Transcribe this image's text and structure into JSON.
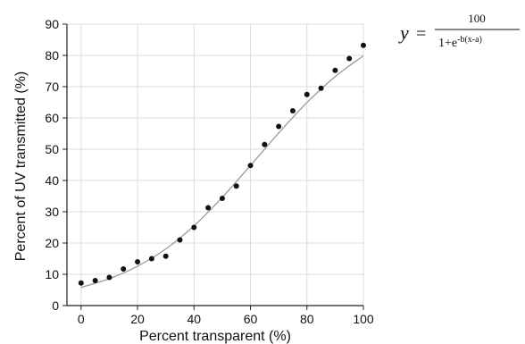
{
  "chart_data": {
    "type": "scatter",
    "title": "",
    "xlabel": "Percent transparent (%)",
    "ylabel": "Percent of UV transmitted (%)",
    "xlim": [
      -5,
      100
    ],
    "ylim": [
      0,
      90
    ],
    "xticks": [
      0,
      20,
      40,
      60,
      80,
      100
    ],
    "yticks": [
      0,
      10,
      20,
      30,
      40,
      50,
      60,
      70,
      80,
      90
    ],
    "grid": true,
    "legend": "none",
    "series": [
      {
        "kind": "points",
        "x": [
          0,
          5,
          10,
          15,
          20,
          25,
          30,
          35,
          40,
          45,
          50,
          55,
          60,
          65,
          70,
          75,
          80,
          85,
          90,
          95,
          100
        ],
        "y": [
          7.2,
          8.0,
          9.0,
          11.7,
          14.0,
          15.0,
          15.8,
          21.0,
          25.0,
          31.3,
          34.3,
          38.2,
          44.8,
          51.5,
          57.3,
          62.3,
          67.5,
          69.5,
          75.2,
          79.0,
          83.2
        ]
      },
      {
        "kind": "fit",
        "x": [
          0,
          10,
          20,
          30,
          40,
          50,
          60,
          70,
          80,
          90,
          100
        ],
        "y": [
          5.8,
          8.6,
          12.6,
          18.1,
          25.5,
          34.6,
          44.8,
          55.2,
          64.9,
          73.2,
          79.9
        ]
      }
    ],
    "annotation": {
      "y_var": "y",
      "equals": "=",
      "numerator": "100",
      "denominator_base": "1+e",
      "denominator_exponent": "-b(x-a)"
    },
    "colors": {
      "points": "#111111",
      "curve": "#9a9a9a",
      "grid": "#dcdcdc",
      "axis": "#222222"
    }
  }
}
